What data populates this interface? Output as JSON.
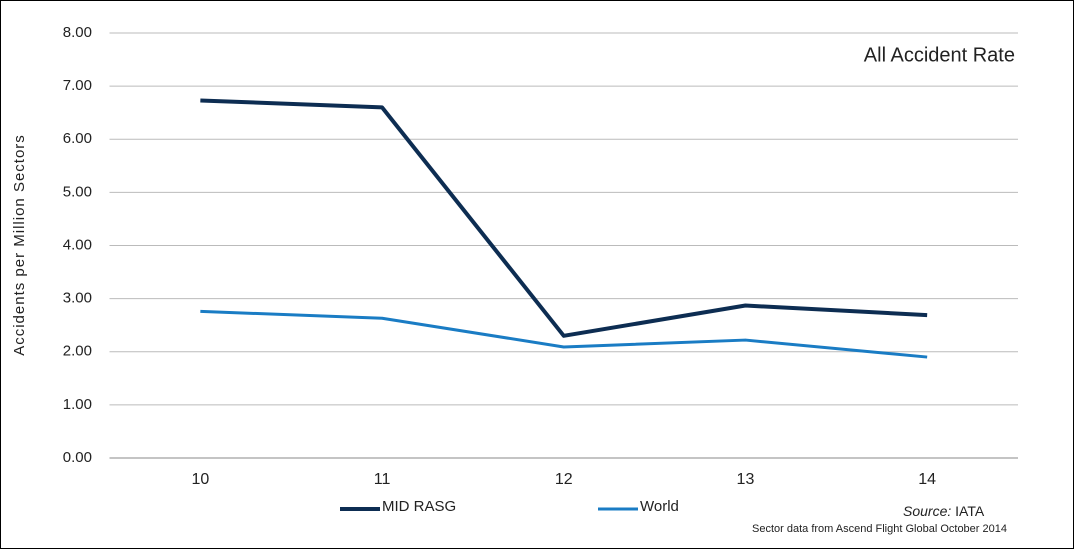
{
  "chart_data": {
    "type": "line",
    "title": "All Accident Rate",
    "y_label": "Accidents per Million Sectors",
    "categories": [
      "10",
      "11",
      "12",
      "13",
      "14"
    ],
    "series": [
      {
        "name": "MID RASG",
        "color": "#0d2d52",
        "values": [
          6.73,
          6.6,
          2.3,
          2.87,
          2.69
        ]
      },
      {
        "name": "World",
        "color": "#1a7cc4",
        "values": [
          2.76,
          2.63,
          2.09,
          2.22,
          1.9
        ]
      }
    ],
    "ylim": [
      0,
      8
    ],
    "yticks": [
      {
        "value": 0,
        "label": "0.00"
      },
      {
        "value": 1,
        "label": "1.00"
      },
      {
        "value": 2,
        "label": "2.00"
      },
      {
        "value": 3,
        "label": "3.00"
      },
      {
        "value": 4,
        "label": "4.00"
      },
      {
        "value": 5,
        "label": "5.00"
      },
      {
        "value": 6,
        "label": "6.00"
      },
      {
        "value": 7,
        "label": "7.00"
      },
      {
        "value": 8,
        "label": "8.00"
      }
    ],
    "grid": true,
    "legend": "bottom",
    "source_label": "Source:",
    "source": "IATA",
    "note": "Sector data from Ascend Flight Global October 2014"
  }
}
